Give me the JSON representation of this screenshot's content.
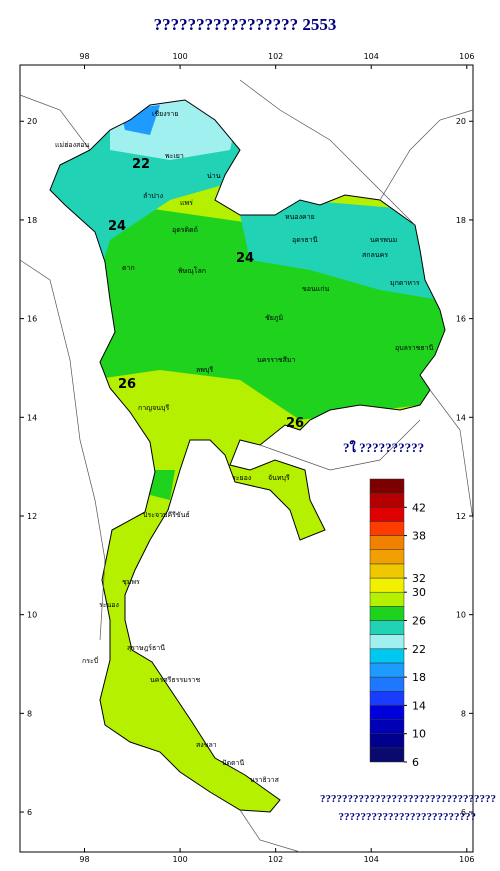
{
  "title": "????????????????? 2553",
  "map": {
    "xlim": [
      96.65,
      106.13
    ],
    "ylim": [
      5.19,
      21.14
    ],
    "xticks": [
      98,
      100,
      102,
      104,
      106
    ],
    "yticks": [
      20,
      18,
      16,
      14,
      12,
      10,
      8,
      6
    ],
    "contour_labels": [
      "22",
      "24",
      "24",
      "26",
      "26"
    ],
    "places": [
      "เชียงราย",
      "แม่ฮ่องสอน",
      "พะเยา",
      "น่าน",
      "ลำปาง",
      "แพร่",
      "อุตรดิตถ์",
      "หนองคาย",
      "อุดรธานี",
      "นครพนม",
      "สกลนคร",
      "มุกดาหาร",
      "ตาก",
      "พิษณุโลก",
      "ขอนแก่น",
      "ชัยภูมิ",
      "นครราชสีมา",
      "อุบลราชธานี",
      "ลพบุรี",
      "กาญจนบุรี",
      "ระยอง",
      "จันทบุรี",
      "ประจวบคีรีขันธ์",
      "ชุมพร",
      "ระนอง",
      "สุราษฎร์ธานี",
      "นครศรีธรรมราช",
      "กระบี่",
      "สงขลา",
      "ปัตตานี",
      "นราธิวาส"
    ]
  },
  "legend": {
    "title": "?ใ ??????????",
    "range": [
      6,
      46
    ],
    "colors": [
      "#0a0a6e",
      "#00008c",
      "#0000b4",
      "#0000dc",
      "#1a3cff",
      "#1e78ff",
      "#1e9bff",
      "#00c8f0",
      "#a0f0f0",
      "#22d2b4",
      "#1ed21e",
      "#b4f000",
      "#f0f000",
      "#f0c800",
      "#f0a000",
      "#f08200",
      "#ff3c00",
      "#e10000",
      "#b40000",
      "#7d0000"
    ],
    "ticks": [
      42,
      38,
      32,
      30,
      26,
      22,
      18,
      14,
      10,
      6
    ]
  },
  "footer": [
    "????????????????????????????????",
    "?????????????????????????"
  ]
}
